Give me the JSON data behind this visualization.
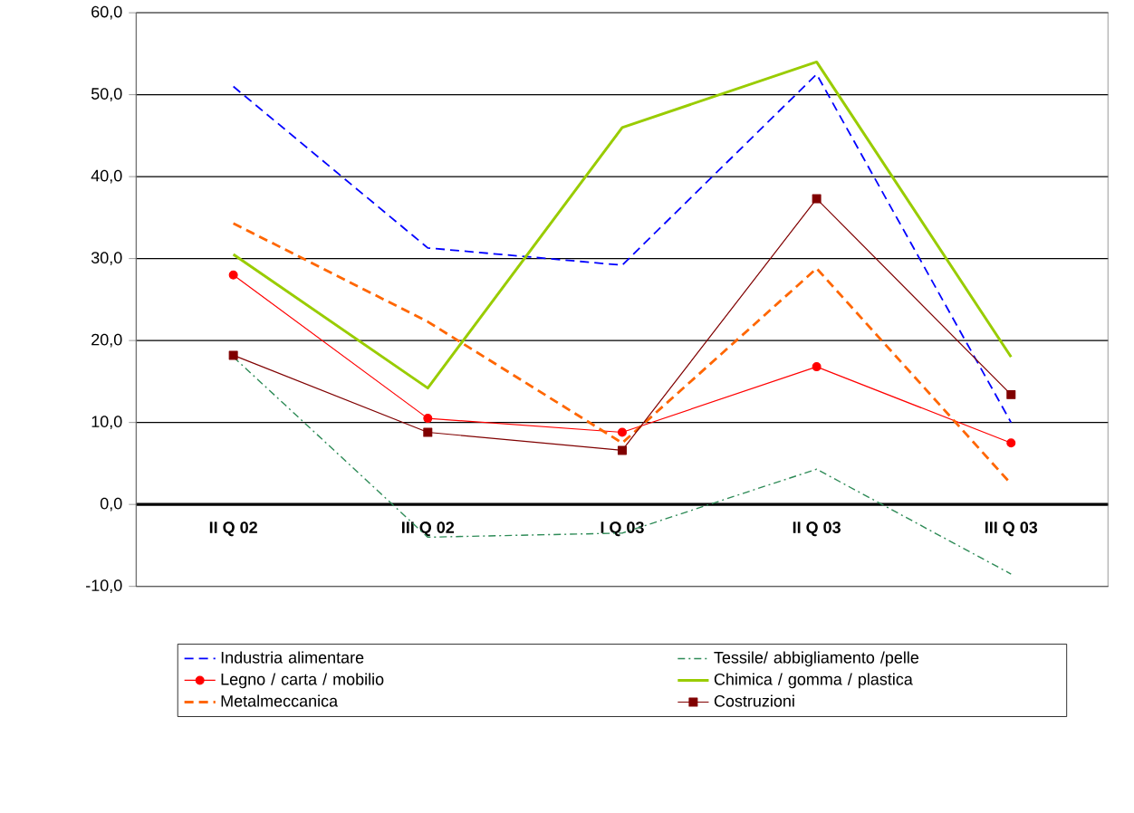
{
  "chart_data": {
    "type": "line",
    "categories": [
      "II Q 02",
      "III Q 02",
      "I Q 03",
      "II Q 03",
      "III Q 03"
    ],
    "series": [
      {
        "name": "Industria alimentare",
        "color": "#0000ff",
        "line_style": "dashed",
        "marker": "none",
        "values": [
          51.0,
          31.3,
          29.2,
          52.5,
          10.0
        ]
      },
      {
        "name": "Tessile/ abbigliamento /pelle",
        "color": "#2e8b57",
        "line_style": "dotted",
        "marker": "none",
        "values": [
          18.0,
          -4.0,
          -3.5,
          4.3,
          -8.5
        ]
      },
      {
        "name": "Legno / carta / mobilio",
        "color": "#ff0000",
        "line_style": "solid",
        "marker": "circle",
        "values": [
          28.0,
          10.5,
          8.8,
          16.8,
          7.5
        ]
      },
      {
        "name": "Chimica / gomma / plastica",
        "color": "#99cc00",
        "line_style": "solid",
        "marker": "none",
        "values": [
          30.5,
          14.2,
          46.0,
          54.0,
          18.0
        ]
      },
      {
        "name": "Metalmeccanica",
        "color": "#ff6600",
        "line_style": "dashed",
        "marker": "none",
        "values": [
          34.3,
          22.3,
          7.5,
          28.8,
          2.5
        ]
      },
      {
        "name": "Costruzioni",
        "color": "#800000",
        "line_style": "solid",
        "marker": "square",
        "values": [
          18.2,
          8.8,
          6.6,
          37.3,
          13.4
        ]
      }
    ],
    "ylim": [
      -10,
      60
    ],
    "yticks": [
      {
        "value": -10,
        "label": "-10,0"
      },
      {
        "value": 0,
        "label": "0,0"
      },
      {
        "value": 10,
        "label": "10,0"
      },
      {
        "value": 20,
        "label": "20,0"
      },
      {
        "value": 30,
        "label": "30,0"
      },
      {
        "value": 40,
        "label": "40,0"
      },
      {
        "value": 50,
        "label": "50,0"
      },
      {
        "value": 60,
        "label": "60,0"
      }
    ],
    "grid": "y",
    "legend": "bottom"
  }
}
